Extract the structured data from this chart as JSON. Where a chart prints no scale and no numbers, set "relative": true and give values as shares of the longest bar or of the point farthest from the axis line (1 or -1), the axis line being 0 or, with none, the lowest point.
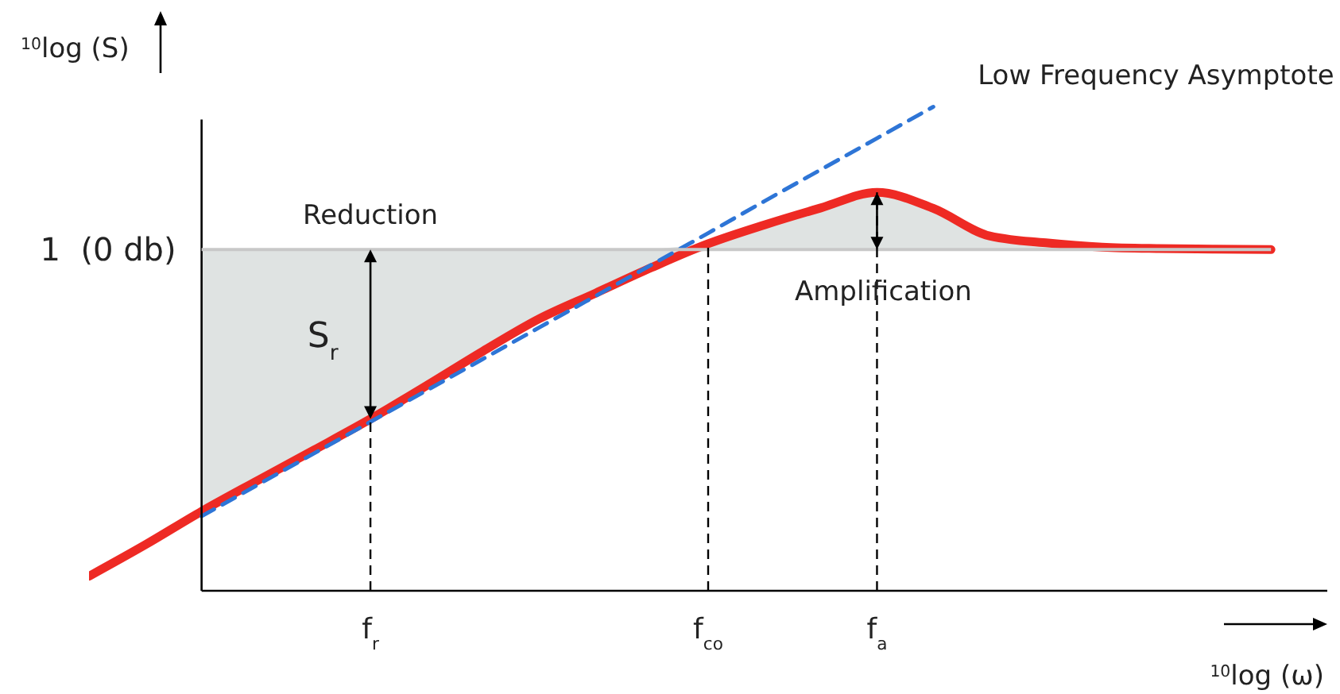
{
  "chart_data": {
    "type": "line",
    "relative": true,
    "xlabel": "$^{10}$log (ω)",
    "ylabel": "$^{10}$log (S)",
    "categories": [
      null,
      null,
      null,
      null,
      null,
      "f$_{r}$",
      null,
      null,
      null,
      null,
      null,
      "f$_{co}$",
      null,
      null,
      "f$_{a}$",
      null,
      null,
      null,
      null,
      null,
      null,
      null,
      null
    ],
    "marker": "none",
    "series": [
      {
        "color": "#ee2a24",
        "values": [
          0.03,
          0.095,
          0.164,
          0.228,
          0.291,
          0.355,
          0.424,
          0.495,
          0.562,
          0.615,
          0.668,
          0.717,
          0.756,
          0.791,
          0.823,
          0.79,
          0.733,
          0.719,
          0.71,
          0.707,
          0.706,
          0.705,
          null
        ],
        "lower": [
          null,
          null,
          0.164,
          0.228,
          0.291,
          0.355,
          0.424,
          0.495,
          0.562,
          0.615,
          0.668,
          0.705,
          0.705,
          0.705,
          0.705,
          0.705,
          0.705,
          0.705,
          0.705,
          0.705,
          0.705,
          0.705,
          null
        ],
        "upper": [
          null,
          null,
          0.705,
          0.705,
          0.705,
          0.705,
          0.705,
          0.705,
          0.705,
          0.705,
          0.705,
          0.717,
          0.756,
          0.791,
          0.823,
          0.79,
          0.733,
          0.719,
          0.71,
          0.707,
          0.706,
          0.705,
          null
        ]
      },
      {
        "name": "Low Frequency Asymptote",
        "color": "#2e75d6",
        "line_style": "dashed",
        "values": [
          null,
          null,
          0.154,
          0.219,
          0.284,
          0.349,
          0.414,
          0.479,
          0.544,
          0.609,
          0.674,
          0.739,
          0.805,
          0.87,
          0.935,
          1.0,
          null,
          null,
          null,
          null,
          null,
          null,
          null
        ]
      }
    ],
    "ref_lines": [
      {
        "axis": "y",
        "value": 0.705,
        "label": "1  (0 db)",
        "color": "#c8c8c8"
      }
    ],
    "annotations": [
      "Reduction",
      "S$_{r}$",
      "Amplification"
    ]
  }
}
